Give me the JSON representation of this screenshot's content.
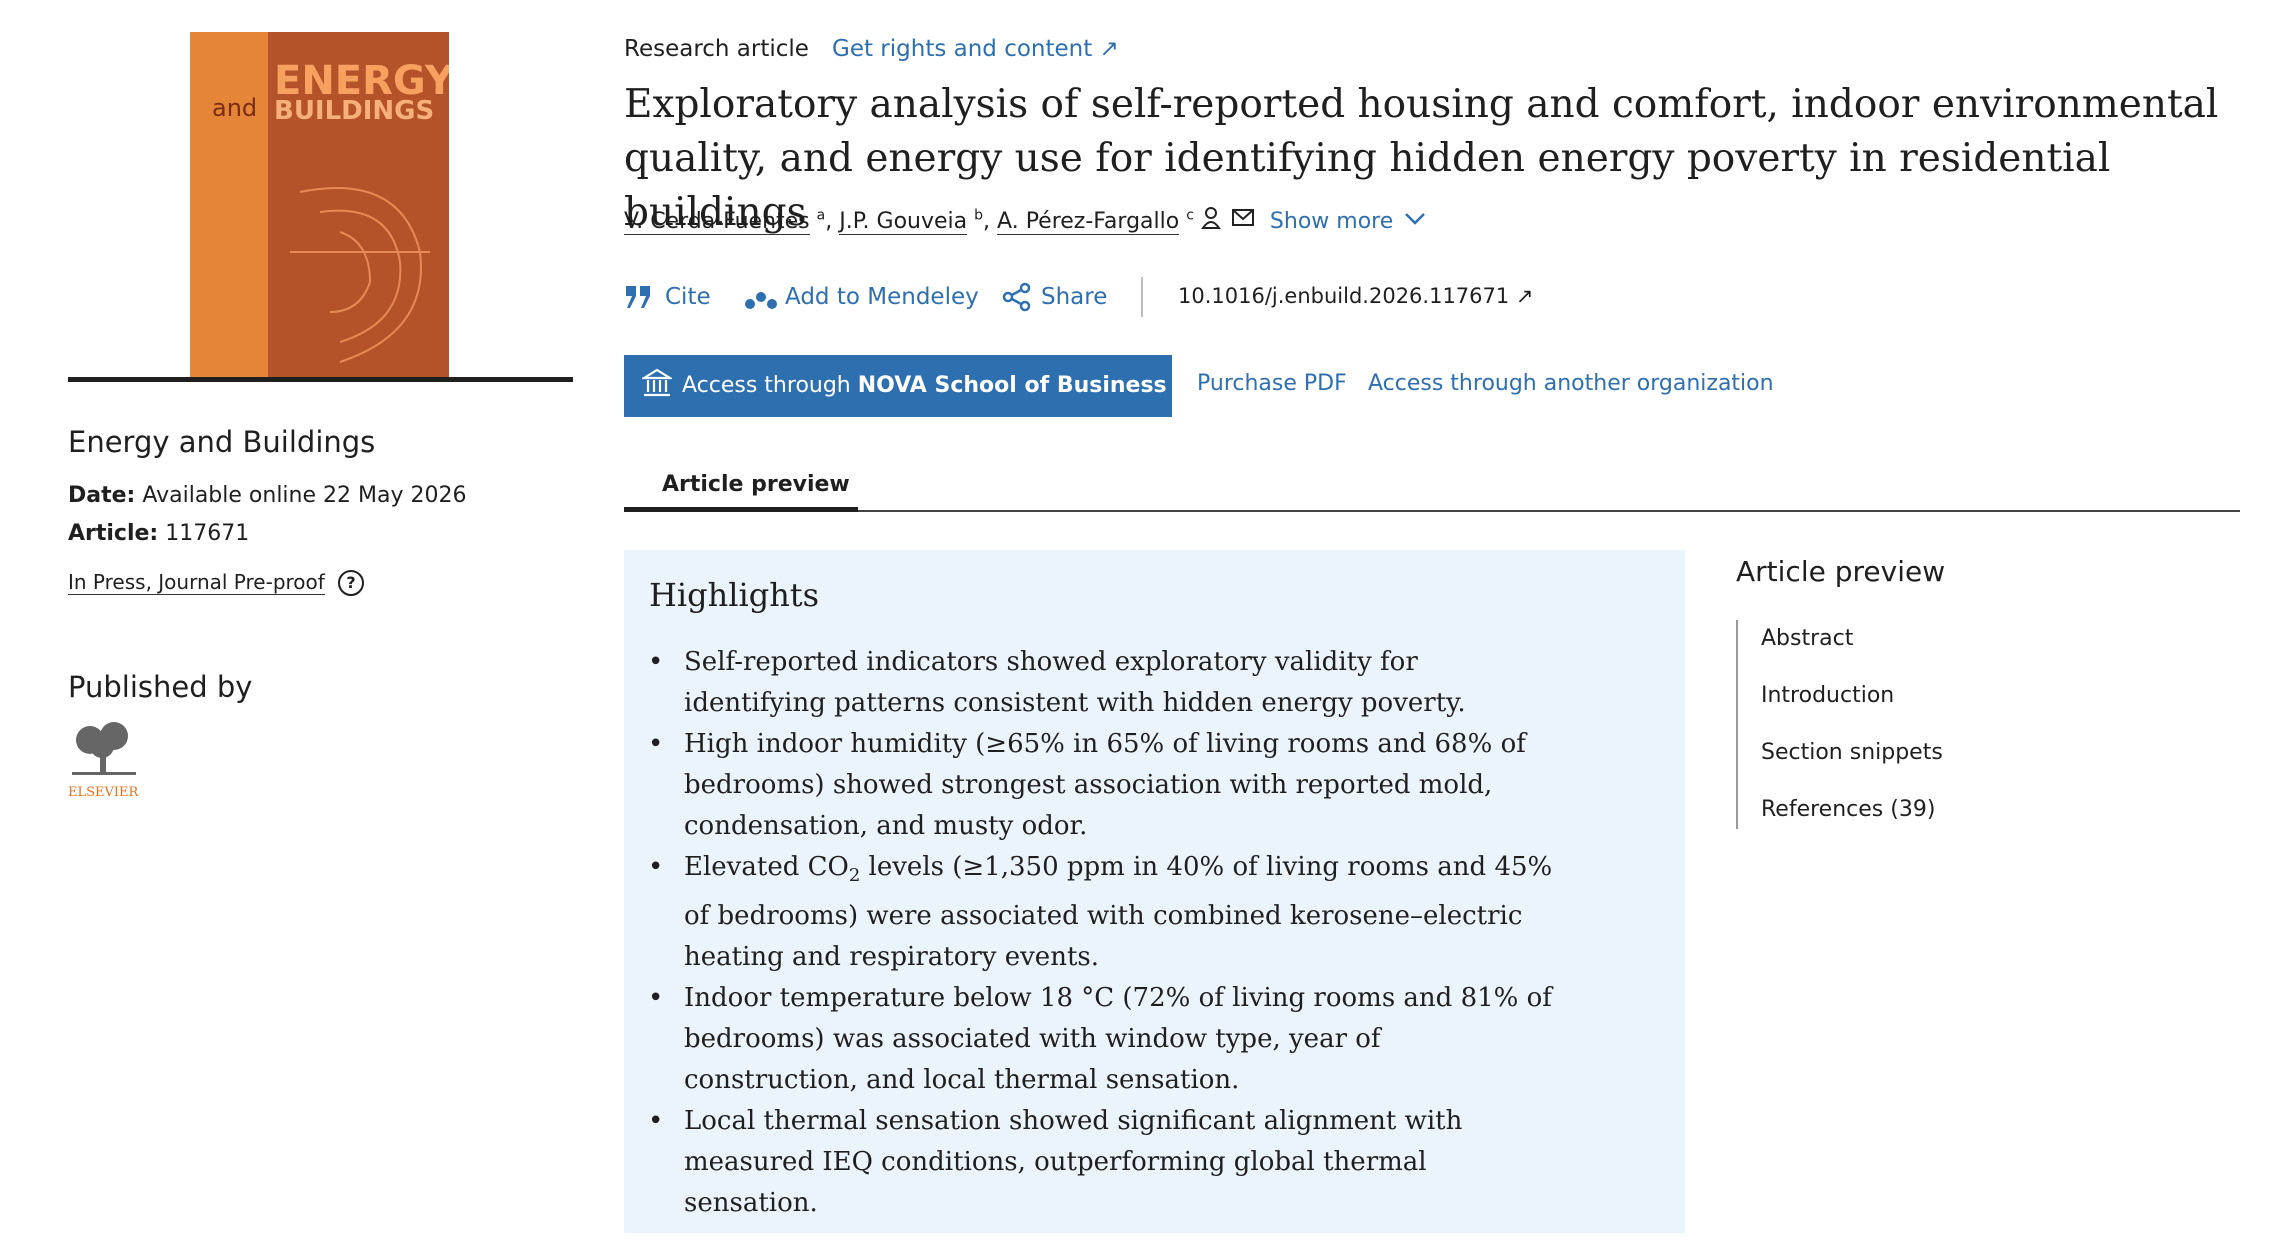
{
  "cover": {
    "word_and": "and",
    "word_energy": "ENERGY",
    "word_buildings": "BUILDINGS"
  },
  "sidebar": {
    "journal": "Energy and Buildings",
    "date_label": "Date:",
    "date": "Available online 22 May 2026",
    "article_label": "Article:",
    "article": "117671",
    "status": "In Press, Journal Pre-proof",
    "help": "?",
    "published_by": "Published by",
    "publisher": "ELSEVIER"
  },
  "header": {
    "type": "Research article",
    "rights": "Get rights and content ↗",
    "title": "Exploratory analysis of self-reported housing and comfort, indoor environmental quality, and energy use for identifying hidden energy poverty in residential buildings",
    "authors": [
      {
        "name": "V. Cerda-Fuentes",
        "sup": "a"
      },
      {
        "name": "J.P. Gouveia",
        "sup": "b"
      },
      {
        "name": "A. Pérez-Fargallo",
        "sup": "c"
      }
    ],
    "show_more": "Show more"
  },
  "actions": {
    "cite": "Cite",
    "mendeley": "Add to Mendeley",
    "share": "Share",
    "doi": "10.1016/j.enbuild.2026.117671 ↗"
  },
  "access": {
    "button_prefix": "Access through ",
    "button_org": "NOVA School of Business &...",
    "purchase": "Purchase PDF",
    "other": "Access through another organization"
  },
  "tab": "Article preview",
  "highlights": {
    "heading": "Highlights",
    "items": [
      [
        "Self-reported indicators showed exploratory validity for identifying patterns consistent with hidden energy poverty."
      ],
      [
        "High indoor humidity (≥65% in 65% of living rooms and 68% of bedrooms) showed strongest association with reported mold, condensation, and musty odor."
      ],
      [
        "Elevated CO",
        "2",
        " levels (≥1,350 ppm in 40% of living rooms and 45% of bedrooms) were associated with combined kerosene–electric heating and respiratory events."
      ],
      [
        "Indoor temperature below 18 °C (72% of living rooms and 81% of bedrooms) was associated with window type, year of construction, and local thermal sensation."
      ],
      [
        "Local thermal sensation showed significant alignment with measured IEQ conditions, outperforming global thermal sensation."
      ]
    ]
  },
  "toc": {
    "heading": "Article preview",
    "items": [
      "Abstract",
      "Introduction",
      "Section snippets",
      "References (39)"
    ]
  }
}
